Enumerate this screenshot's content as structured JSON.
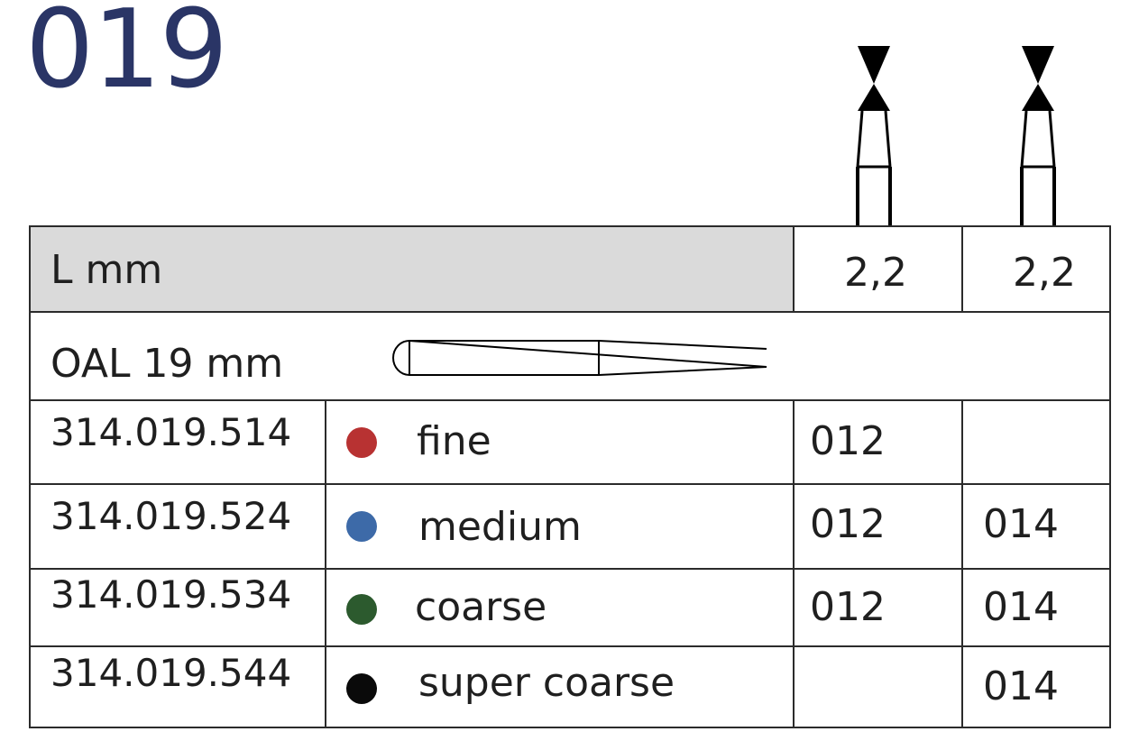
{
  "title": "019",
  "table": {
    "header": {
      "label": "L mm",
      "col1": "2,2",
      "col2": "2,2"
    },
    "oal": "OAL 19 mm",
    "rows": [
      {
        "code": "314.019.514",
        "grit": "fine",
        "color": "#b83232",
        "col1": "012",
        "col2": ""
      },
      {
        "code": "314.019.524",
        "grit": "medium",
        "color": "#3d6aa8",
        "col1": "012",
        "col2": "014"
      },
      {
        "code": "314.019.534",
        "grit": "coarse",
        "color": "#2c5a2e",
        "col1": "012",
        "col2": "014"
      },
      {
        "code": "314.019.544",
        "grit": "super coarse",
        "color": "#0a0a0a",
        "col1": "",
        "col2": "014"
      }
    ]
  }
}
